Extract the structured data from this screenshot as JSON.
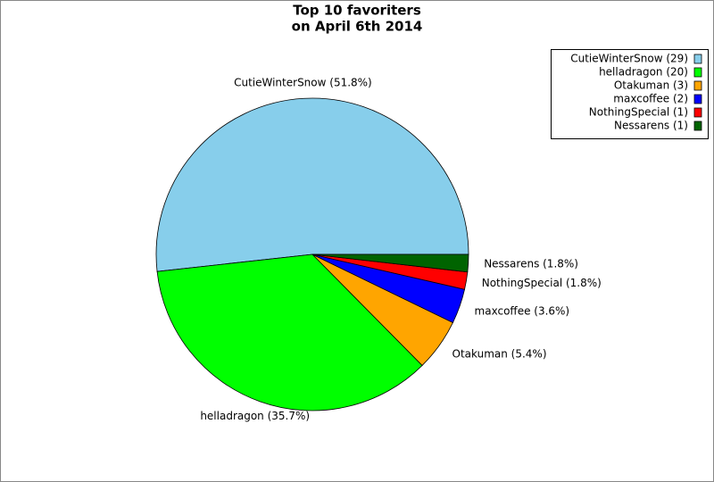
{
  "chart_data": {
    "type": "pie",
    "title": [
      "Top 10 favoriters",
      "on April 6th 2014"
    ],
    "values": [
      51.8,
      35.7,
      5.4,
      3.6,
      1.8,
      1.8
    ],
    "value_labels": [
      "CutieWinterSnow (51.8%)",
      "helladragon (35.7%)",
      "Otakuman (5.4%)",
      "maxcoffee (3.6%)",
      "NothingSpecial (1.8%)",
      "Nessarens (1.8%)"
    ],
    "legend_labels": [
      "CutieWinterSnow (29)",
      "helladragon (20)",
      "Otakuman (3)",
      "maxcoffee (2)",
      "NothingSpecial (1)",
      "Nessarens (1)"
    ],
    "colors": [
      "#87ceeb",
      "#00ff00",
      "#ffa500",
      "#0000ff",
      "#ff0000",
      "#006400"
    ],
    "legend": "upper right"
  }
}
